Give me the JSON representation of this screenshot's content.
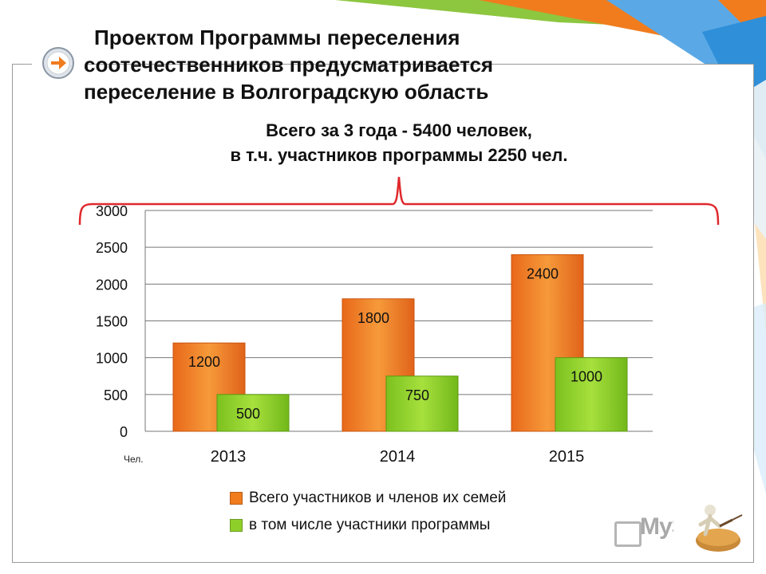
{
  "slide": {
    "title_line1": "Проектом Программы переселения",
    "title_line2": "соотечественников предусматривается",
    "title_line3": "переселение в Волгоградскую область",
    "subtitle_line1": "Всего за 3 года - 5400 человек,",
    "subtitle_line2": "в т.ч. участников программы 2250 чел.",
    "unit_label": "Чел.",
    "watermark": "MyShared"
  },
  "colors": {
    "series_total": "#f07c1e",
    "series_participants": "#8fcf2a",
    "brace": "#e0282c",
    "accent_arrow": "#f07c1e"
  },
  "chart_data": {
    "type": "bar",
    "categories": [
      "2013",
      "2014",
      "2015"
    ],
    "series": [
      {
        "name": "Всего участников и членов их семей",
        "values": [
          1200,
          1800,
          2400
        ]
      },
      {
        "name": "в том числе  участники программы",
        "values": [
          500,
          750,
          1000
        ]
      }
    ],
    "ylim": [
      0,
      3000
    ],
    "yticks": [
      "0",
      "500",
      "1000",
      "1500",
      "2000",
      "2500",
      "3000"
    ],
    "grid": true,
    "legend_position": "bottom"
  }
}
